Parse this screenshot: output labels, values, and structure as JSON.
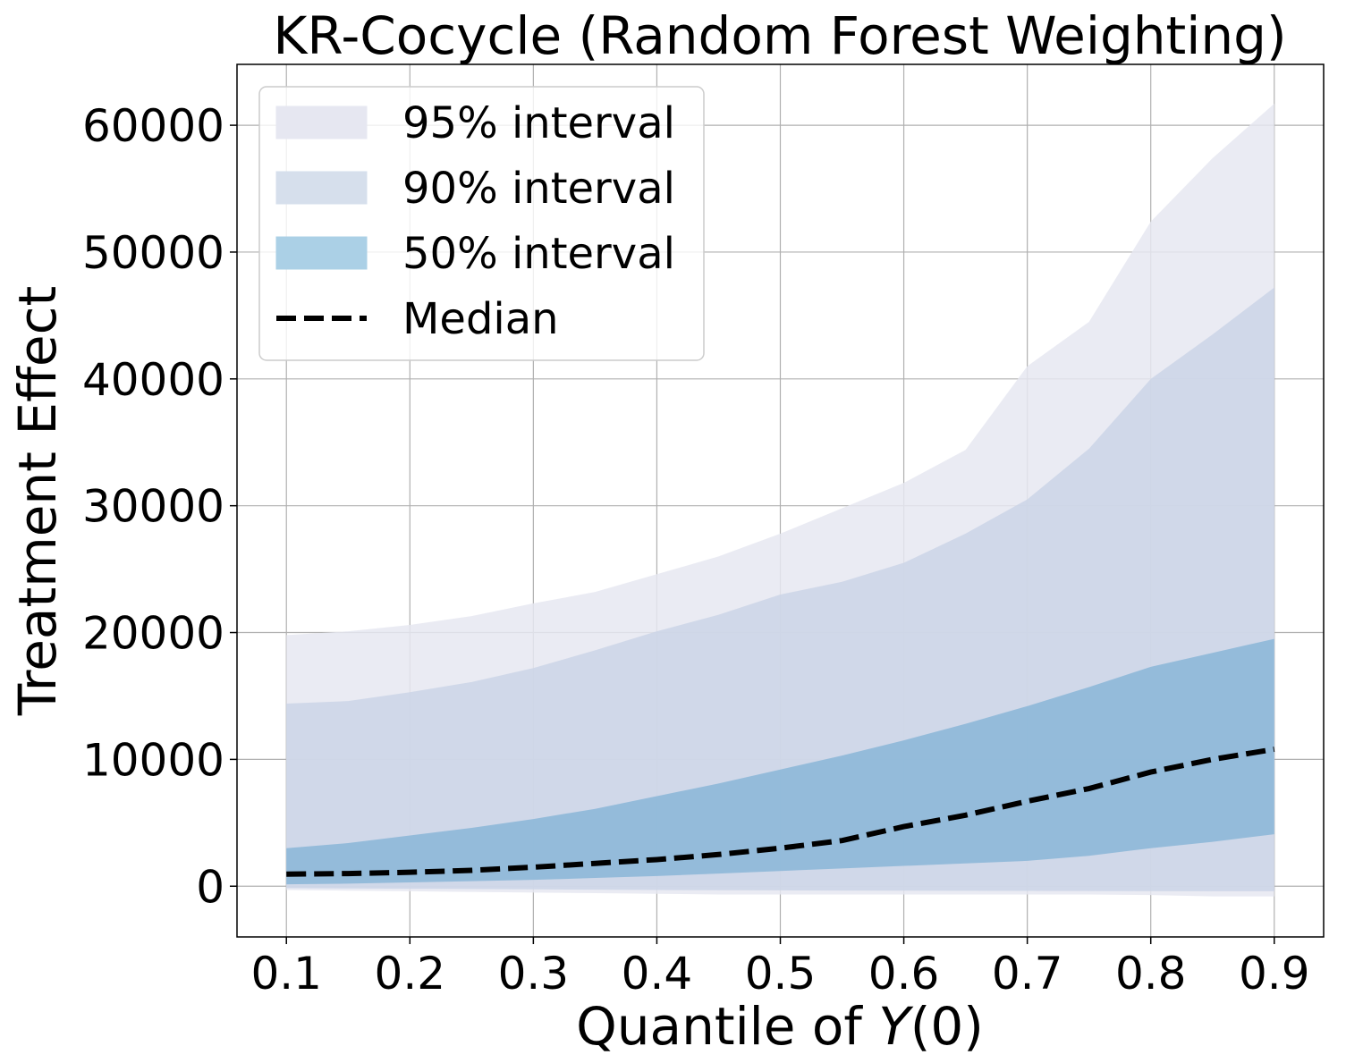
{
  "chart_data": {
    "type": "area",
    "title": "KR-Cocycle (Random Forest Weighting)",
    "xlabel_prefix": "Quantile of ",
    "xlabel_var": "Y",
    "xlabel_suffix": "(0)",
    "ylabel": "Treatment Effect",
    "xlim": [
      0.06,
      0.94
    ],
    "ylim": [
      -4000,
      64800
    ],
    "xticks": [
      0.1,
      0.2,
      0.3,
      0.4,
      0.5,
      0.6,
      0.7,
      0.8,
      0.9
    ],
    "xtick_labels": [
      "0.1",
      "0.2",
      "0.3",
      "0.4",
      "0.5",
      "0.6",
      "0.7",
      "0.8",
      "0.9"
    ],
    "yticks": [
      0,
      10000,
      20000,
      30000,
      40000,
      50000,
      60000
    ],
    "ytick_labels": [
      "0",
      "10000",
      "20000",
      "30000",
      "40000",
      "50000",
      "60000"
    ],
    "grid": true,
    "legend_position": "top-left",
    "x": [
      0.1,
      0.15,
      0.2,
      0.25,
      0.3,
      0.35,
      0.4,
      0.45,
      0.5,
      0.55,
      0.6,
      0.65,
      0.7,
      0.75,
      0.8,
      0.85,
      0.9
    ],
    "bands": [
      {
        "name": "95% interval",
        "color": "#e6e7f1",
        "opacity": 0.85,
        "lower": [
          -300,
          -350,
          -400,
          -450,
          -500,
          -550,
          -600,
          -650,
          -650,
          -650,
          -650,
          -650,
          -650,
          -650,
          -700,
          -800,
          -800
        ],
        "upper": [
          19800,
          20100,
          20600,
          21300,
          22300,
          23200,
          24600,
          26000,
          27800,
          29800,
          31800,
          34400,
          41000,
          44500,
          52400,
          57400,
          61700
        ]
      },
      {
        "name": "90% interval",
        "color": "#cbd5e6",
        "opacity": 0.85,
        "lower": [
          -150,
          -180,
          -200,
          -220,
          -250,
          -270,
          -300,
          -320,
          -330,
          -340,
          -350,
          -360,
          -370,
          -380,
          -390,
          -400,
          -400
        ],
        "upper": [
          14400,
          14600,
          15300,
          16100,
          17200,
          18600,
          20100,
          21400,
          23000,
          24000,
          25500,
          27800,
          30500,
          34500,
          40000,
          43500,
          47200
        ]
      },
      {
        "name": "50% interval",
        "color": "#8db8d8",
        "opacity": 0.9,
        "lower": [
          150,
          200,
          300,
          400,
          500,
          650,
          800,
          1000,
          1200,
          1400,
          1600,
          1800,
          2000,
          2400,
          3000,
          3500,
          4100
        ],
        "upper": [
          3000,
          3400,
          4000,
          4600,
          5300,
          6100,
          7100,
          8100,
          9200,
          10300,
          11500,
          12800,
          14200,
          15700,
          17300,
          18400,
          19500
        ]
      }
    ],
    "series": [
      {
        "name": "Median",
        "color": "#000000",
        "style": "dashed",
        "values": [
          950,
          1000,
          1100,
          1250,
          1500,
          1800,
          2100,
          2500,
          3000,
          3600,
          4700,
          5600,
          6700,
          7700,
          9000,
          10000,
          10800
        ]
      }
    ],
    "legend": [
      {
        "label": "95% interval",
        "kind": "patch",
        "color": "#e6e7f1"
      },
      {
        "label": "90% interval",
        "kind": "patch",
        "color": "#d6dfec"
      },
      {
        "label": "50% interval",
        "kind": "patch",
        "color": "#abd0e6"
      },
      {
        "label": "Median",
        "kind": "line",
        "color": "#000000"
      }
    ]
  }
}
